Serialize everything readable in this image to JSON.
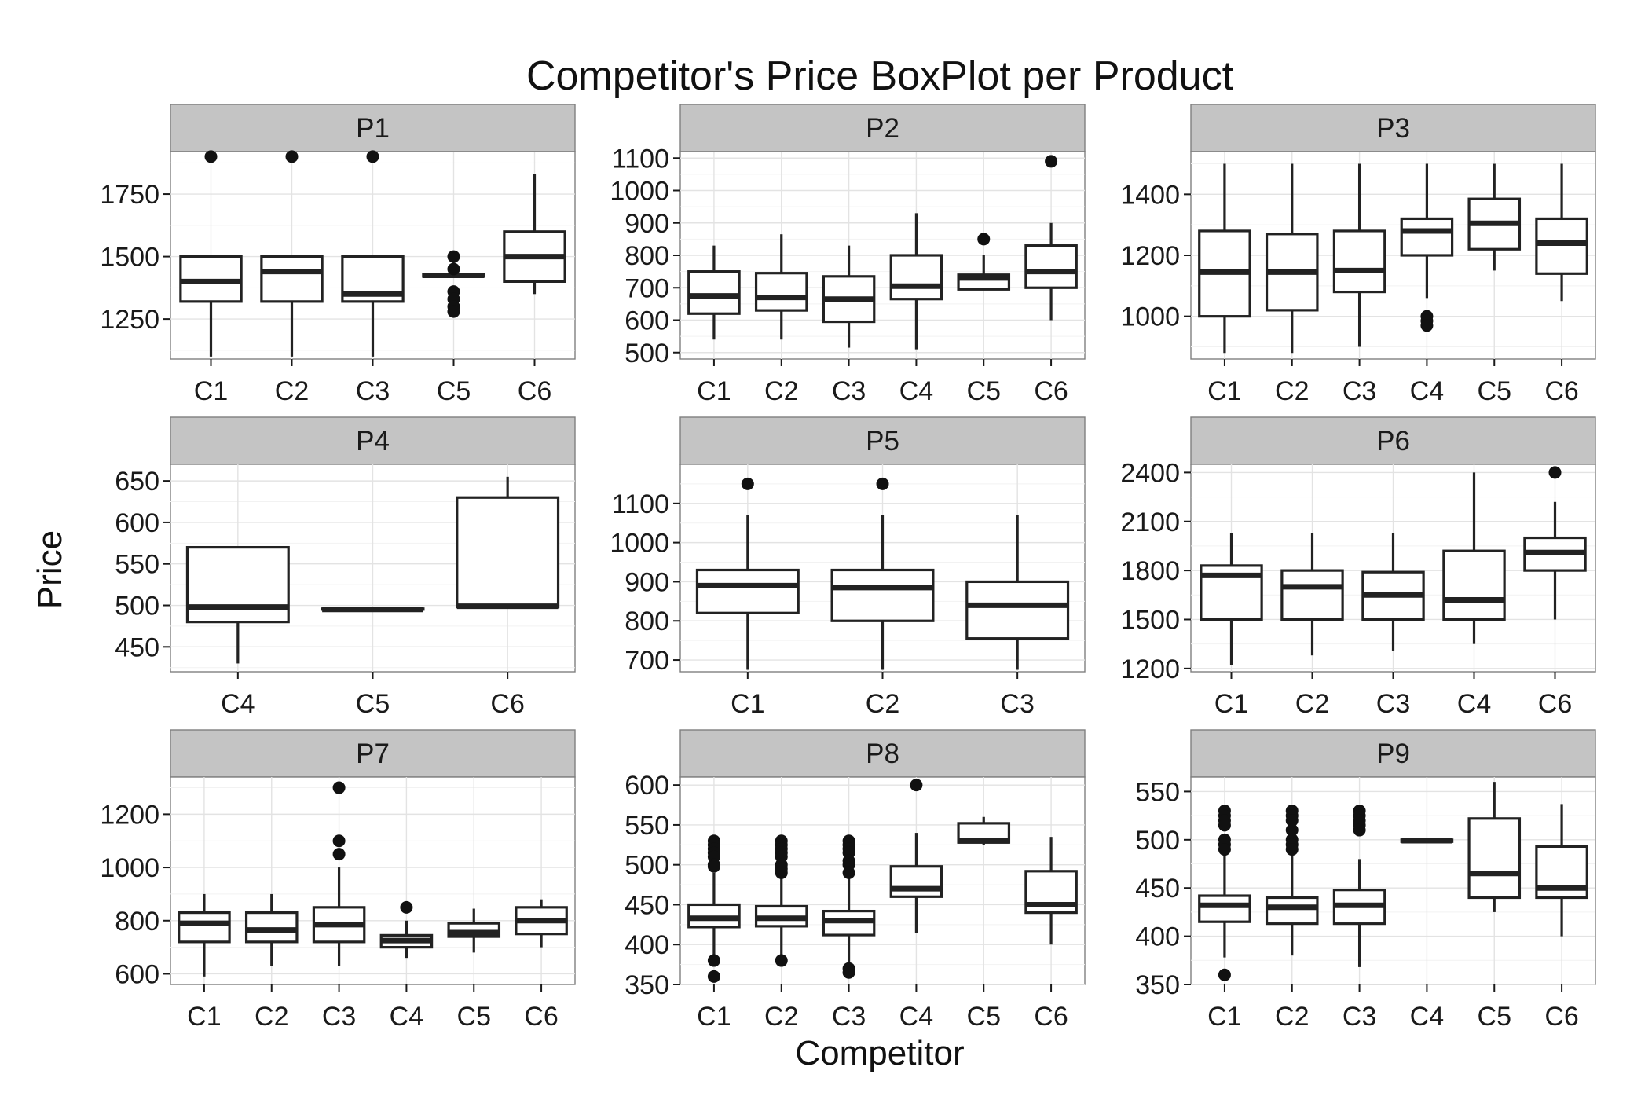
{
  "chart_data": {
    "type": "boxplot",
    "title": "Competitor's Price BoxPlot per Product",
    "xlabel": "Competitor",
    "ylabel": "Price",
    "grid": true,
    "facet_layout": "3x3",
    "colors": {
      "box_fill": "#ffffff",
      "box_line": "#222222",
      "strip": "#c4c4c4",
      "grid": "#e3e3e3"
    },
    "panels": [
      {
        "name": "P1",
        "ylim": [
          1090,
          1920
        ],
        "yticks": [
          1250,
          1500,
          1750
        ],
        "categories": [
          "C1",
          "C2",
          "C3",
          "C5",
          "C6"
        ],
        "boxes": [
          {
            "min": 1100,
            "q1": 1320,
            "median": 1400,
            "q3": 1500,
            "max": 1500,
            "outliers": [
              1900
            ]
          },
          {
            "min": 1100,
            "q1": 1320,
            "median": 1440,
            "q3": 1500,
            "max": 1500,
            "outliers": [
              1900
            ]
          },
          {
            "min": 1100,
            "q1": 1320,
            "median": 1350,
            "q3": 1500,
            "max": 1500,
            "outliers": [
              1900
            ]
          },
          {
            "min": 1420,
            "q1": 1420,
            "median": 1425,
            "q3": 1430,
            "max": 1430,
            "outliers": [
              1500,
              1450,
              1360,
              1330,
              1300,
              1280
            ]
          },
          {
            "min": 1350,
            "q1": 1400,
            "median": 1500,
            "q3": 1600,
            "max": 1830,
            "outliers": []
          }
        ]
      },
      {
        "name": "P2",
        "ylim": [
          480,
          1120
        ],
        "yticks": [
          500,
          600,
          700,
          800,
          900,
          1000,
          1100
        ],
        "categories": [
          "C1",
          "C2",
          "C3",
          "C4",
          "C5",
          "C6"
        ],
        "boxes": [
          {
            "min": 540,
            "q1": 620,
            "median": 675,
            "q3": 750,
            "max": 830,
            "outliers": []
          },
          {
            "min": 540,
            "q1": 630,
            "median": 670,
            "q3": 745,
            "max": 865,
            "outliers": []
          },
          {
            "min": 515,
            "q1": 595,
            "median": 665,
            "q3": 735,
            "max": 830,
            "outliers": []
          },
          {
            "min": 510,
            "q1": 665,
            "median": 705,
            "q3": 800,
            "max": 930,
            "outliers": []
          },
          {
            "min": 695,
            "q1": 695,
            "median": 730,
            "q3": 740,
            "max": 800,
            "outliers": [
              850
            ]
          },
          {
            "min": 600,
            "q1": 700,
            "median": 750,
            "q3": 830,
            "max": 900,
            "outliers": [
              1090
            ]
          }
        ]
      },
      {
        "name": "P3",
        "ylim": [
          860,
          1540
        ],
        "yticks": [
          1000,
          1200,
          1400
        ],
        "categories": [
          "C1",
          "C2",
          "C3",
          "C4",
          "C5",
          "C6"
        ],
        "boxes": [
          {
            "min": 880,
            "q1": 1000,
            "median": 1145,
            "q3": 1280,
            "max": 1500,
            "outliers": []
          },
          {
            "min": 880,
            "q1": 1020,
            "median": 1145,
            "q3": 1270,
            "max": 1500,
            "outliers": []
          },
          {
            "min": 900,
            "q1": 1080,
            "median": 1150,
            "q3": 1280,
            "max": 1500,
            "outliers": []
          },
          {
            "min": 1060,
            "q1": 1200,
            "median": 1280,
            "q3": 1320,
            "max": 1500,
            "outliers": [
              1000,
              985,
              970
            ]
          },
          {
            "min": 1150,
            "q1": 1220,
            "median": 1305,
            "q3": 1385,
            "max": 1500,
            "outliers": []
          },
          {
            "min": 1050,
            "q1": 1140,
            "median": 1240,
            "q3": 1320,
            "max": 1500,
            "outliers": []
          }
        ]
      },
      {
        "name": "P4",
        "ylim": [
          420,
          670
        ],
        "yticks": [
          450,
          500,
          550,
          600,
          650
        ],
        "categories": [
          "C4",
          "C5",
          "C6"
        ],
        "boxes": [
          {
            "min": 430,
            "q1": 480,
            "median": 498,
            "q3": 570,
            "max": 570,
            "outliers": []
          },
          {
            "min": 495,
            "q1": 495,
            "median": 495,
            "q3": 496,
            "max": 496,
            "outliers": []
          },
          {
            "min": 498,
            "q1": 498,
            "median": 499,
            "q3": 630,
            "max": 655,
            "outliers": []
          }
        ]
      },
      {
        "name": "P5",
        "ylim": [
          670,
          1200
        ],
        "yticks": [
          700,
          800,
          900,
          1000,
          1100
        ],
        "categories": [
          "C1",
          "C2",
          "C3"
        ],
        "boxes": [
          {
            "min": 675,
            "q1": 820,
            "median": 890,
            "q3": 930,
            "max": 1070,
            "outliers": [
              1150
            ]
          },
          {
            "min": 675,
            "q1": 800,
            "median": 885,
            "q3": 930,
            "max": 1070,
            "outliers": [
              1150
            ]
          },
          {
            "min": 675,
            "q1": 755,
            "median": 840,
            "q3": 900,
            "max": 1070,
            "outliers": []
          }
        ]
      },
      {
        "name": "P6",
        "ylim": [
          1180,
          2450
        ],
        "yticks": [
          1200,
          1500,
          1800,
          2100,
          2400
        ],
        "categories": [
          "C1",
          "C2",
          "C3",
          "C4",
          "C6"
        ],
        "boxes": [
          {
            "min": 1220,
            "q1": 1500,
            "median": 1770,
            "q3": 1830,
            "max": 2030,
            "outliers": []
          },
          {
            "min": 1280,
            "q1": 1500,
            "median": 1700,
            "q3": 1800,
            "max": 2030,
            "outliers": []
          },
          {
            "min": 1310,
            "q1": 1500,
            "median": 1650,
            "q3": 1790,
            "max": 2030,
            "outliers": []
          },
          {
            "min": 1350,
            "q1": 1500,
            "median": 1620,
            "q3": 1920,
            "max": 2400,
            "outliers": []
          },
          {
            "min": 1500,
            "q1": 1800,
            "median": 1910,
            "q3": 2000,
            "max": 2220,
            "outliers": [
              2400
            ]
          }
        ]
      },
      {
        "name": "P7",
        "ylim": [
          560,
          1340
        ],
        "yticks": [
          600,
          800,
          1000,
          1200
        ],
        "categories": [
          "C1",
          "C2",
          "C3",
          "C4",
          "C5",
          "C6"
        ],
        "boxes": [
          {
            "min": 590,
            "q1": 720,
            "median": 790,
            "q3": 830,
            "max": 900,
            "outliers": []
          },
          {
            "min": 630,
            "q1": 720,
            "median": 765,
            "q3": 830,
            "max": 900,
            "outliers": []
          },
          {
            "min": 630,
            "q1": 720,
            "median": 785,
            "q3": 850,
            "max": 1000,
            "outliers": [
              1300,
              1100,
              1050
            ]
          },
          {
            "min": 660,
            "q1": 700,
            "median": 725,
            "q3": 745,
            "max": 800,
            "outliers": [
              850
            ]
          },
          {
            "min": 680,
            "q1": 740,
            "median": 755,
            "q3": 790,
            "max": 845,
            "outliers": []
          },
          {
            "min": 700,
            "q1": 750,
            "median": 800,
            "q3": 850,
            "max": 880,
            "outliers": []
          }
        ]
      },
      {
        "name": "P8",
        "ylim": [
          350,
          610
        ],
        "yticks": [
          350,
          400,
          450,
          500,
          550,
          600
        ],
        "categories": [
          "C1",
          "C2",
          "C3",
          "C4",
          "C5",
          "C6"
        ],
        "boxes": [
          {
            "min": 385,
            "q1": 422,
            "median": 433,
            "q3": 450,
            "max": 490,
            "outliers": [
              530,
              525,
              520,
              515,
              510,
              500,
              498,
              380,
              360
            ]
          },
          {
            "min": 385,
            "q1": 423,
            "median": 433,
            "q3": 448,
            "max": 488,
            "outliers": [
              530,
              525,
              520,
              515,
              510,
              500,
              495,
              490,
              380
            ]
          },
          {
            "min": 375,
            "q1": 412,
            "median": 430,
            "q3": 442,
            "max": 485,
            "outliers": [
              530,
              525,
              520,
              515,
              505,
              500,
              490,
              370,
              365
            ]
          },
          {
            "min": 415,
            "q1": 460,
            "median": 470,
            "q3": 498,
            "max": 540,
            "outliers": [
              600
            ]
          },
          {
            "min": 525,
            "q1": 528,
            "median": 530,
            "q3": 552,
            "max": 560,
            "outliers": []
          },
          {
            "min": 400,
            "q1": 440,
            "median": 450,
            "q3": 492,
            "max": 535,
            "outliers": []
          }
        ]
      },
      {
        "name": "P9",
        "ylim": [
          350,
          565
        ],
        "yticks": [
          350,
          400,
          450,
          500,
          550
        ],
        "categories": [
          "C1",
          "C2",
          "C3",
          "C4",
          "C5",
          "C6"
        ],
        "boxes": [
          {
            "min": 378,
            "q1": 415,
            "median": 432,
            "q3": 442,
            "max": 485,
            "outliers": [
              530,
              525,
              520,
              515,
              500,
              495,
              490,
              360
            ]
          },
          {
            "min": 380,
            "q1": 413,
            "median": 430,
            "q3": 440,
            "max": 485,
            "outliers": [
              530,
              525,
              520,
              510,
              500,
              495,
              490
            ]
          },
          {
            "min": 368,
            "q1": 413,
            "median": 432,
            "q3": 448,
            "max": 480,
            "outliers": [
              530,
              525,
              520,
              515,
              510
            ]
          },
          {
            "min": 498,
            "q1": 498,
            "median": 499,
            "q3": 500,
            "max": 500,
            "outliers": []
          },
          {
            "min": 425,
            "q1": 440,
            "median": 465,
            "q3": 522,
            "max": 560,
            "outliers": []
          },
          {
            "min": 400,
            "q1": 440,
            "median": 450,
            "q3": 493,
            "max": 537,
            "outliers": []
          }
        ]
      }
    ]
  }
}
